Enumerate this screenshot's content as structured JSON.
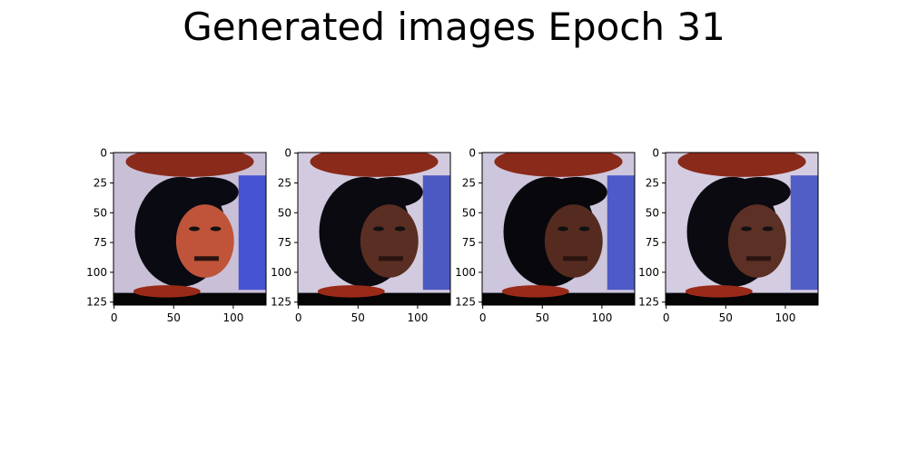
{
  "figure": {
    "title": "Generated images Epoch 31"
  },
  "chart_data": [
    {
      "type": "image",
      "subplot": 1,
      "xticks": [
        0,
        50,
        100
      ],
      "yticks": [
        0,
        25,
        50,
        75,
        100,
        125
      ],
      "xlim": [
        -0.5,
        127.5
      ],
      "ylim": [
        127.5,
        -0.5
      ],
      "image_colors": {
        "top_band": "#8a2a1a",
        "face": "#c0543a",
        "hair": "#0a0a12",
        "background": "#c9c0d8",
        "edge": "#1a2fd0"
      }
    },
    {
      "type": "image",
      "subplot": 2,
      "xticks": [
        0,
        50,
        100
      ],
      "yticks": [
        0,
        25,
        50,
        75,
        100,
        125
      ],
      "xlim": [
        -0.5,
        127.5
      ],
      "ylim": [
        127.5,
        -0.5
      ],
      "image_colors": {
        "top_band": "#8a2a1a",
        "face": "#5a2e22",
        "hair": "#0a0a10",
        "background": "#d2cbe0",
        "edge": "#2033b8"
      }
    },
    {
      "type": "image",
      "subplot": 3,
      "xticks": [
        0,
        50,
        100
      ],
      "yticks": [
        0,
        25,
        50,
        75,
        100,
        125
      ],
      "xlim": [
        -0.5,
        127.5
      ],
      "ylim": [
        127.5,
        -0.5
      ],
      "image_colors": {
        "top_band": "#8a2a1a",
        "face": "#552b20",
        "hair": "#08080c",
        "background": "#cdc6dc",
        "edge": "#2236c0"
      }
    },
    {
      "type": "image",
      "subplot": 4,
      "xticks": [
        0,
        50,
        100
      ],
      "yticks": [
        0,
        25,
        50,
        75,
        100,
        125
      ],
      "xlim": [
        -0.5,
        127.5
      ],
      "ylim": [
        127.5,
        -0.5
      ],
      "image_colors": {
        "top_band": "#8a2a1a",
        "face": "#5c3024",
        "hair": "#0a0a10",
        "background": "#d4cde2",
        "edge": "#2438bc"
      }
    }
  ]
}
